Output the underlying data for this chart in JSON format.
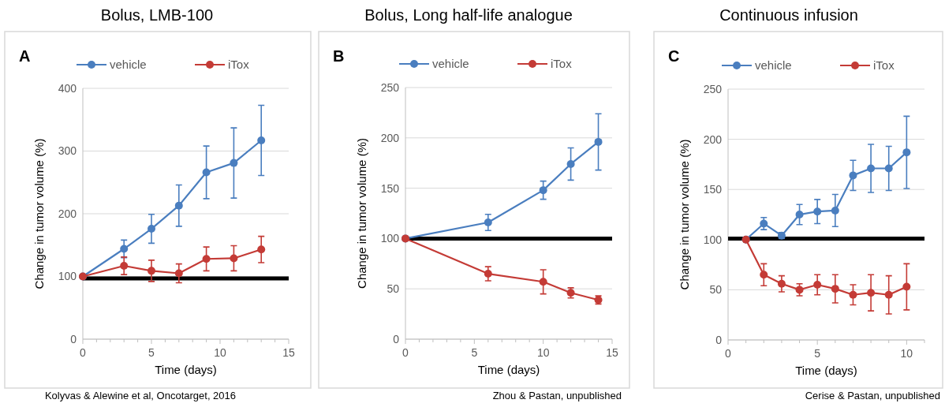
{
  "chart_data": [
    {
      "type": "line",
      "title": "Bolus, LMB-100",
      "xlabel": "Time (days)",
      "ylabel": "Change in tumor volume (%)",
      "annotations": [
        "A",
        "Kolyvas & Alewine et al, Oncotarget, 2016"
      ],
      "xlim": [
        0,
        15
      ],
      "xticks": [
        0,
        {
          "value": 1,
          "label": null
        },
        {
          "value": 2,
          "label": null
        },
        {
          "value": 3,
          "label": null
        },
        {
          "value": 4,
          "label": null
        },
        5,
        {
          "value": 6,
          "label": null
        },
        {
          "value": 7,
          "label": null
        },
        {
          "value": 8,
          "label": null
        },
        {
          "value": 9,
          "label": null
        },
        10,
        {
          "value": 11,
          "label": null
        },
        {
          "value": 12,
          "label": null
        },
        {
          "value": 13,
          "label": null
        },
        {
          "value": 14,
          "label": null
        },
        15
      ],
      "ylim": [
        0,
        400
      ],
      "yticks": [
        0,
        100,
        200,
        300,
        400
      ],
      "grid": "y",
      "legend": "top",
      "marker": "circle",
      "line_style": "solid",
      "ref_lines": [
        {
          "axis": "y",
          "value": 97,
          "color": "#000000"
        }
      ],
      "series": [
        {
          "name": "vehicle",
          "color": "#4a7ebf",
          "x": [
            0,
            3,
            5,
            7,
            9,
            11,
            13
          ],
          "values": [
            100,
            144,
            176,
            213,
            266,
            281,
            317
          ],
          "errors": [
            null,
            14,
            23,
            33,
            42,
            56,
            56
          ]
        },
        {
          "name": "iTox",
          "color": "#c43b36",
          "x": [
            0,
            3,
            5,
            7,
            9,
            11,
            13
          ],
          "values": [
            100,
            117,
            109,
            105,
            128,
            129,
            143
          ],
          "errors": [
            null,
            14,
            17,
            15,
            19,
            20,
            21
          ]
        }
      ]
    },
    {
      "type": "line",
      "title": "Bolus, Long half-life analogue",
      "xlabel": "Time (days)",
      "ylabel": "Change in tumor volume (%)",
      "annotations": [
        "B",
        "Zhou & Pastan, unpublished"
      ],
      "xlim": [
        0,
        15
      ],
      "xticks": [
        0,
        {
          "value": 1,
          "label": null
        },
        {
          "value": 2,
          "label": null
        },
        {
          "value": 3,
          "label": null
        },
        {
          "value": 4,
          "label": null
        },
        5,
        {
          "value": 6,
          "label": null
        },
        {
          "value": 7,
          "label": null
        },
        {
          "value": 8,
          "label": null
        },
        {
          "value": 9,
          "label": null
        },
        10,
        {
          "value": 11,
          "label": null
        },
        {
          "value": 12,
          "label": null
        },
        {
          "value": 13,
          "label": null
        },
        {
          "value": 14,
          "label": null
        },
        15
      ],
      "ylim": [
        0,
        250
      ],
      "yticks": [
        0,
        50,
        100,
        150,
        200,
        250
      ],
      "grid": "y",
      "legend": "top",
      "marker": "circle",
      "line_style": "solid",
      "ref_lines": [
        {
          "axis": "y",
          "value": 100,
          "color": "#000000"
        }
      ],
      "series": [
        {
          "name": "vehicle",
          "color": "#4a7ebf",
          "x": [
            0,
            6,
            10,
            12,
            14
          ],
          "values": [
            100,
            116,
            148,
            174,
            196
          ],
          "errors": [
            null,
            8,
            9,
            16,
            28
          ]
        },
        {
          "name": "iTox",
          "color": "#c43b36",
          "x": [
            0,
            6,
            10,
            12,
            14
          ],
          "values": [
            100,
            65,
            57,
            46,
            39
          ],
          "errors": [
            null,
            7,
            12,
            5,
            4
          ]
        }
      ]
    },
    {
      "type": "line",
      "title": "Continuous infusion",
      "xlabel": "Time (days)",
      "ylabel": "Change in tumor volume (%)",
      "annotations": [
        "C",
        "Cerise & Pastan, unpublished"
      ],
      "xlim": [
        0,
        11
      ],
      "xticks": [
        0,
        {
          "value": 1,
          "label": null
        },
        {
          "value": 2,
          "label": null
        },
        {
          "value": 3,
          "label": null
        },
        {
          "value": 4,
          "label": null
        },
        5,
        {
          "value": 6,
          "label": null
        },
        {
          "value": 7,
          "label": null
        },
        {
          "value": 8,
          "label": null
        },
        {
          "value": 9,
          "label": null
        },
        10,
        {
          "value": 11,
          "label": null
        }
      ],
      "ylim": [
        0,
        250
      ],
      "yticks": [
        0,
        50,
        100,
        150,
        200,
        250
      ],
      "grid": "y",
      "legend": "top",
      "marker": "circle",
      "line_style": "solid",
      "ref_lines": [
        {
          "axis": "y",
          "value": 101,
          "color": "#000000"
        }
      ],
      "series": [
        {
          "name": "vehicle",
          "color": "#4a7ebf",
          "x": [
            1,
            2,
            3,
            4,
            5,
            6,
            7,
            8,
            9,
            10
          ],
          "values": [
            100,
            116,
            104,
            125,
            128,
            129,
            164,
            171,
            171,
            187
          ],
          "errors": [
            null,
            6,
            3,
            10,
            12,
            16,
            15,
            24,
            22,
            36
          ]
        },
        {
          "name": "iTox",
          "color": "#c43b36",
          "x": [
            1,
            2,
            3,
            4,
            5,
            6,
            7,
            8,
            9,
            10
          ],
          "values": [
            100,
            65,
            56,
            50,
            55,
            51,
            45,
            47,
            45,
            53
          ],
          "errors": [
            null,
            11,
            8,
            6,
            10,
            14,
            10,
            18,
            19,
            23
          ]
        }
      ]
    }
  ]
}
